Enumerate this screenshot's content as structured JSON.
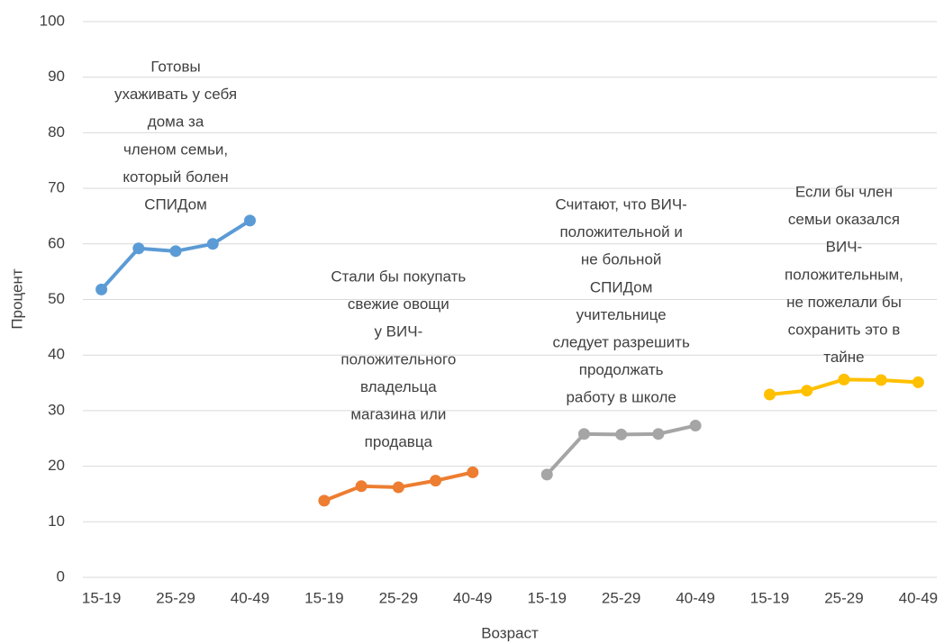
{
  "chart_data": {
    "type": "line",
    "ylabel": "Процент",
    "xlabel": "Возраст",
    "categories": [
      "15-19",
      null,
      "25-29",
      null,
      "40-49",
      null,
      "15-19",
      null,
      "25-29",
      null,
      "40-49",
      null,
      "15-19",
      null,
      "25-29",
      null,
      "40-49",
      null,
      "15-19",
      null,
      "25-29",
      null,
      "40-49"
    ],
    "ylim": [
      0,
      100
    ],
    "yticks": [
      0,
      10,
      20,
      30,
      40,
      50,
      60,
      70,
      80,
      90,
      100
    ],
    "grid": true,
    "series": [
      {
        "color": "#5b9bd5",
        "values": [
          51.8,
          59.2,
          58.7,
          60.0,
          64.2,
          null,
          null,
          null,
          null,
          null,
          null,
          null,
          null,
          null,
          null,
          null,
          null,
          null,
          null,
          null,
          null,
          null,
          null
        ]
      },
      {
        "color": "#ed7d31",
        "values": [
          null,
          null,
          null,
          null,
          null,
          null,
          13.8,
          16.4,
          16.2,
          17.4,
          18.9,
          null,
          null,
          null,
          null,
          null,
          null,
          null,
          null,
          null,
          null,
          null,
          null
        ]
      },
      {
        "color": "#a5a5a5",
        "values": [
          null,
          null,
          null,
          null,
          null,
          null,
          null,
          null,
          null,
          null,
          null,
          null,
          18.5,
          25.8,
          25.7,
          25.8,
          27.3,
          null,
          null,
          null,
          null,
          null,
          null
        ]
      },
      {
        "color": "#ffc000",
        "values": [
          null,
          null,
          null,
          null,
          null,
          null,
          null,
          null,
          null,
          null,
          null,
          null,
          null,
          null,
          null,
          null,
          null,
          null,
          32.9,
          33.6,
          35.6,
          35.5,
          35.1
        ]
      }
    ],
    "annotations": [
      {
        "lines": [
          "Готовы",
          "ухаживать у себя",
          "дома за",
          "членом семьи,",
          "который болен",
          "СПИДом"
        ]
      },
      {
        "lines": [
          "Стали бы покупать",
          "свежие овощи",
          "у ВИЧ-",
          "положительного",
          "владельца",
          "магазина или",
          "продавца"
        ]
      },
      {
        "lines": [
          "Считают, что ВИЧ-",
          "положительной и",
          "не больной",
          "СПИДом",
          "учительнице",
          "следует разрешить",
          "продолжать",
          "работу в школе"
        ]
      },
      {
        "lines": [
          "Если бы член",
          "семьи оказался",
          "ВИЧ-",
          "положительным,",
          "не пожелали бы",
          "сохранить это в",
          "тайне"
        ]
      }
    ]
  }
}
